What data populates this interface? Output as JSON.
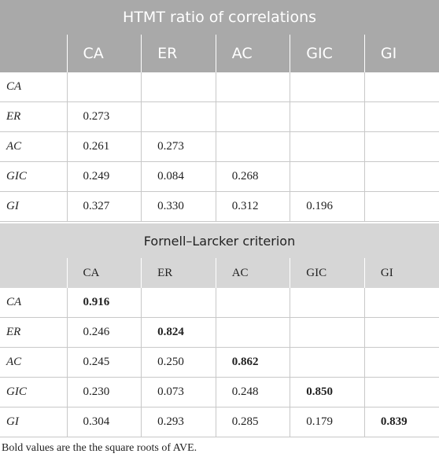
{
  "tables": [
    {
      "title": "HTMT ratio of correlations",
      "columns": [
        "CA",
        "ER",
        "AC",
        "GIC",
        "GI"
      ],
      "bold_diagonal": false,
      "rows": [
        {
          "label": "CA",
          "values": []
        },
        {
          "label": "ER",
          "values": [
            "0.273"
          ]
        },
        {
          "label": "AC",
          "values": [
            "0.261",
            "0.273"
          ]
        },
        {
          "label": "GIC",
          "values": [
            "0.249",
            "0.084",
            "0.268"
          ]
        },
        {
          "label": "GI",
          "values": [
            "0.327",
            "0.330",
            "0.312",
            "0.196"
          ]
        }
      ]
    },
    {
      "title": "Fornell–Larcker criterion",
      "columns": [
        "CA",
        "ER",
        "AC",
        "GIC",
        "GI"
      ],
      "bold_diagonal": true,
      "rows": [
        {
          "label": "CA",
          "values": [
            "0.916"
          ]
        },
        {
          "label": "ER",
          "values": [
            "0.246",
            "0.824"
          ]
        },
        {
          "label": "AC",
          "values": [
            "0.245",
            "0.250",
            "0.862"
          ]
        },
        {
          "label": "GIC",
          "values": [
            "0.230",
            "0.073",
            "0.248",
            "0.850"
          ]
        },
        {
          "label": "GI",
          "values": [
            "0.304",
            "0.293",
            "0.285",
            "0.179",
            "0.839"
          ]
        }
      ]
    }
  ],
  "footnote": "Bold values are the the square roots of AVE."
}
